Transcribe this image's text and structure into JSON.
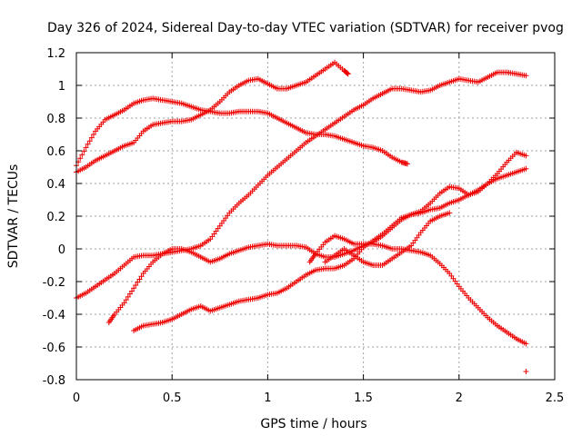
{
  "chart_data": {
    "type": "scatter",
    "title": "Day 326 of 2024, Sidereal Day-to-day VTEC variation (SDTVAR) for receiver pvog",
    "xlabel": "GPS time / hours",
    "ylabel": "SDTVAR / TECUs",
    "xlim": [
      0,
      2.5
    ],
    "ylim": [
      -0.8,
      1.2
    ],
    "x_ticks": [
      0,
      0.5,
      1,
      1.5,
      2,
      2.5
    ],
    "x_tick_labels": [
      "0",
      "0.5",
      "1",
      "1.5",
      "2",
      "2.5"
    ],
    "y_ticks": [
      -0.8,
      -0.6,
      -0.4,
      -0.2,
      0,
      0.2,
      0.4,
      0.6,
      0.8,
      1,
      1.2
    ],
    "y_tick_labels": [
      "-0.8",
      "-0.6",
      "-0.4",
      "-0.2",
      "0",
      "0.2",
      "0.4",
      "0.6",
      "0.8",
      "1",
      "1.2"
    ],
    "grid": true,
    "marker": "+",
    "color": "#ee0000",
    "series": [
      {
        "name": "series-1",
        "points": [
          [
            0,
            0.51
          ],
          [
            0.05,
            0.62
          ],
          [
            0.1,
            0.72
          ],
          [
            0.15,
            0.79
          ],
          [
            0.2,
            0.82
          ],
          [
            0.25,
            0.85
          ],
          [
            0.3,
            0.89
          ],
          [
            0.35,
            0.91
          ],
          [
            0.4,
            0.92
          ],
          [
            0.45,
            0.91
          ],
          [
            0.5,
            0.9
          ],
          [
            0.55,
            0.89
          ],
          [
            0.6,
            0.87
          ],
          [
            0.65,
            0.85
          ],
          [
            0.7,
            0.84
          ],
          [
            0.75,
            0.83
          ],
          [
            0.8,
            0.83
          ],
          [
            0.85,
            0.84
          ],
          [
            0.9,
            0.84
          ],
          [
            0.95,
            0.84
          ],
          [
            1.0,
            0.83
          ],
          [
            1.05,
            0.8
          ],
          [
            1.1,
            0.77
          ],
          [
            1.15,
            0.74
          ],
          [
            1.2,
            0.71
          ],
          [
            1.25,
            0.7
          ],
          [
            1.3,
            0.7
          ],
          [
            1.35,
            0.69
          ],
          [
            1.4,
            0.67
          ],
          [
            1.45,
            0.65
          ],
          [
            1.5,
            0.63
          ],
          [
            1.55,
            0.62
          ],
          [
            1.6,
            0.6
          ],
          [
            1.65,
            0.56
          ],
          [
            1.7,
            0.53
          ],
          [
            1.73,
            0.52
          ]
        ]
      },
      {
        "name": "series-2",
        "points": [
          [
            0,
            0.47
          ],
          [
            0.05,
            0.5
          ],
          [
            0.1,
            0.54
          ],
          [
            0.15,
            0.57
          ],
          [
            0.2,
            0.6
          ],
          [
            0.25,
            0.63
          ],
          [
            0.3,
            0.65
          ],
          [
            0.35,
            0.72
          ],
          [
            0.4,
            0.76
          ],
          [
            0.45,
            0.77
          ],
          [
            0.5,
            0.78
          ],
          [
            0.55,
            0.78
          ],
          [
            0.6,
            0.79
          ],
          [
            0.65,
            0.82
          ],
          [
            0.7,
            0.85
          ],
          [
            0.75,
            0.9
          ],
          [
            0.8,
            0.96
          ],
          [
            0.85,
            1.0
          ],
          [
            0.9,
            1.03
          ],
          [
            0.95,
            1.04
          ],
          [
            1.0,
            1.01
          ],
          [
            1.05,
            0.98
          ],
          [
            1.1,
            0.98
          ],
          [
            1.15,
            1.0
          ],
          [
            1.2,
            1.02
          ],
          [
            1.25,
            1.06
          ],
          [
            1.3,
            1.1
          ],
          [
            1.35,
            1.14
          ],
          [
            1.4,
            1.09
          ],
          [
            1.42,
            1.07
          ]
        ]
      },
      {
        "name": "series-3",
        "points": [
          [
            0,
            -0.3
          ],
          [
            0.05,
            -0.27
          ],
          [
            0.1,
            -0.23
          ],
          [
            0.15,
            -0.19
          ],
          [
            0.2,
            -0.15
          ],
          [
            0.25,
            -0.1
          ],
          [
            0.3,
            -0.05
          ],
          [
            0.35,
            -0.04
          ],
          [
            0.4,
            -0.04
          ],
          [
            0.45,
            -0.03
          ],
          [
            0.5,
            -0.02
          ],
          [
            0.55,
            -0.01
          ],
          [
            0.6,
            0.0
          ],
          [
            0.65,
            0.02
          ],
          [
            0.7,
            0.06
          ],
          [
            0.75,
            0.14
          ],
          [
            0.8,
            0.22
          ],
          [
            0.85,
            0.28
          ],
          [
            0.9,
            0.33
          ],
          [
            0.95,
            0.39
          ],
          [
            1.0,
            0.45
          ],
          [
            1.05,
            0.5
          ],
          [
            1.1,
            0.55
          ],
          [
            1.15,
            0.6
          ],
          [
            1.2,
            0.65
          ],
          [
            1.25,
            0.69
          ],
          [
            1.3,
            0.73
          ],
          [
            1.35,
            0.77
          ],
          [
            1.4,
            0.81
          ],
          [
            1.45,
            0.85
          ],
          [
            1.5,
            0.88
          ],
          [
            1.55,
            0.92
          ],
          [
            1.6,
            0.95
          ],
          [
            1.65,
            0.98
          ],
          [
            1.7,
            0.98
          ],
          [
            1.75,
            0.97
          ],
          [
            1.8,
            0.96
          ],
          [
            1.85,
            0.97
          ],
          [
            1.9,
            1.0
          ],
          [
            1.95,
            1.02
          ],
          [
            2.0,
            1.04
          ],
          [
            2.05,
            1.03
          ],
          [
            2.1,
            1.02
          ],
          [
            2.15,
            1.05
          ],
          [
            2.2,
            1.08
          ],
          [
            2.25,
            1.08
          ],
          [
            2.3,
            1.07
          ],
          [
            2.35,
            1.06
          ]
        ]
      },
      {
        "name": "series-4",
        "points": [
          [
            0.17,
            -0.45
          ],
          [
            0.2,
            -0.4
          ],
          [
            0.25,
            -0.33
          ],
          [
            0.3,
            -0.24
          ],
          [
            0.35,
            -0.15
          ],
          [
            0.4,
            -0.08
          ],
          [
            0.45,
            -0.03
          ],
          [
            0.5,
            0.0
          ],
          [
            0.55,
            0.0
          ],
          [
            0.6,
            -0.02
          ],
          [
            0.65,
            -0.05
          ],
          [
            0.7,
            -0.08
          ],
          [
            0.75,
            -0.06
          ],
          [
            0.8,
            -0.03
          ],
          [
            0.85,
            -0.01
          ],
          [
            0.9,
            0.01
          ],
          [
            0.95,
            0.02
          ],
          [
            1.0,
            0.03
          ],
          [
            1.05,
            0.02
          ],
          [
            1.1,
            0.02
          ],
          [
            1.15,
            0.02
          ],
          [
            1.2,
            0.01
          ],
          [
            1.25,
            -0.03
          ],
          [
            1.3,
            -0.05
          ],
          [
            1.35,
            -0.05
          ],
          [
            1.4,
            -0.03
          ],
          [
            1.45,
            -0.01
          ],
          [
            1.5,
            0.02
          ],
          [
            1.55,
            0.04
          ],
          [
            1.6,
            0.08
          ],
          [
            1.65,
            0.13
          ],
          [
            1.7,
            0.18
          ],
          [
            1.75,
            0.21
          ],
          [
            1.8,
            0.22
          ],
          [
            1.85,
            0.24
          ],
          [
            1.9,
            0.25
          ],
          [
            1.95,
            0.28
          ],
          [
            2.0,
            0.3
          ],
          [
            2.05,
            0.33
          ],
          [
            2.1,
            0.36
          ],
          [
            2.15,
            0.4
          ],
          [
            2.2,
            0.43
          ],
          [
            2.25,
            0.45
          ],
          [
            2.3,
            0.47
          ],
          [
            2.35,
            0.49
          ]
        ]
      },
      {
        "name": "series-5",
        "points": [
          [
            0.3,
            -0.5
          ],
          [
            0.35,
            -0.47
          ],
          [
            0.4,
            -0.46
          ],
          [
            0.45,
            -0.45
          ],
          [
            0.5,
            -0.43
          ],
          [
            0.55,
            -0.4
          ],
          [
            0.6,
            -0.37
          ],
          [
            0.65,
            -0.35
          ],
          [
            0.7,
            -0.38
          ],
          [
            0.75,
            -0.36
          ],
          [
            0.8,
            -0.34
          ],
          [
            0.85,
            -0.32
          ],
          [
            0.9,
            -0.31
          ],
          [
            0.95,
            -0.3
          ],
          [
            1.0,
            -0.28
          ],
          [
            1.05,
            -0.27
          ],
          [
            1.1,
            -0.24
          ],
          [
            1.15,
            -0.2
          ],
          [
            1.2,
            -0.16
          ],
          [
            1.25,
            -0.13
          ],
          [
            1.3,
            -0.12
          ],
          [
            1.35,
            -0.12
          ],
          [
            1.4,
            -0.1
          ],
          [
            1.45,
            -0.06
          ],
          [
            1.5,
            0.01
          ],
          [
            1.55,
            0.05
          ],
          [
            1.6,
            0.09
          ],
          [
            1.65,
            0.14
          ],
          [
            1.7,
            0.19
          ],
          [
            1.75,
            0.21
          ],
          [
            1.8,
            0.23
          ],
          [
            1.85,
            0.28
          ],
          [
            1.9,
            0.34
          ],
          [
            1.95,
            0.38
          ],
          [
            2.0,
            0.37
          ],
          [
            2.05,
            0.33
          ],
          [
            2.1,
            0.35
          ],
          [
            2.15,
            0.4
          ],
          [
            2.2,
            0.46
          ],
          [
            2.25,
            0.53
          ],
          [
            2.3,
            0.59
          ],
          [
            2.35,
            0.57
          ]
        ]
      },
      {
        "name": "series-6",
        "points": [
          [
            1.22,
            -0.08
          ],
          [
            1.25,
            -0.03
          ],
          [
            1.3,
            0.04
          ],
          [
            1.35,
            0.08
          ],
          [
            1.4,
            0.06
          ],
          [
            1.45,
            0.03
          ],
          [
            1.5,
            0.03
          ],
          [
            1.55,
            0.03
          ],
          [
            1.6,
            0.02
          ],
          [
            1.65,
            0.0
          ],
          [
            1.7,
            0.0
          ],
          [
            1.75,
            -0.01
          ],
          [
            1.8,
            -0.02
          ],
          [
            1.85,
            -0.04
          ],
          [
            1.9,
            -0.09
          ],
          [
            1.95,
            -0.15
          ],
          [
            2.0,
            -0.23
          ],
          [
            2.05,
            -0.3
          ],
          [
            2.1,
            -0.36
          ],
          [
            2.15,
            -0.42
          ],
          [
            2.2,
            -0.47
          ],
          [
            2.25,
            -0.51
          ],
          [
            2.3,
            -0.55
          ],
          [
            2.35,
            -0.58
          ]
        ]
      },
      {
        "name": "series-7",
        "points": [
          [
            1.3,
            -0.08
          ],
          [
            1.35,
            -0.04
          ],
          [
            1.4,
            0.0
          ],
          [
            1.45,
            -0.04
          ],
          [
            1.5,
            -0.08
          ],
          [
            1.55,
            -0.1
          ],
          [
            1.6,
            -0.1
          ],
          [
            1.65,
            -0.06
          ],
          [
            1.7,
            -0.02
          ],
          [
            1.75,
            0.02
          ],
          [
            1.8,
            0.1
          ],
          [
            1.85,
            0.17
          ],
          [
            1.9,
            0.2
          ],
          [
            1.95,
            0.22
          ]
        ]
      },
      {
        "name": "outlier",
        "points": [
          [
            2.35,
            -0.75
          ]
        ]
      }
    ]
  }
}
